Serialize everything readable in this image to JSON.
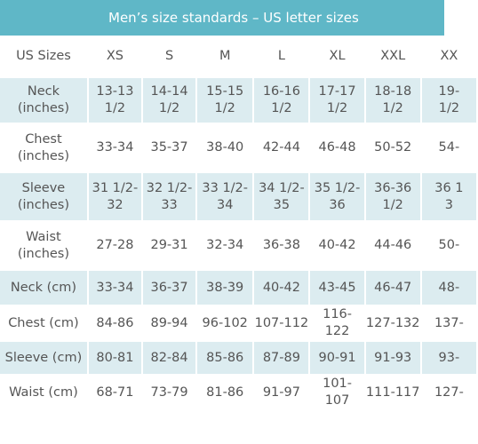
{
  "title": "Men’s size standards – US letter sizes",
  "table": {
    "header": [
      "US Sizes",
      "XS",
      "S",
      "M",
      "L",
      "XL",
      "XXL",
      "XX"
    ],
    "rows": [
      [
        "Neck\n(inches)",
        "13-13\n1/2",
        "14-14\n1/2",
        "15-15\n1/2",
        "16-16\n1/2",
        "17-17\n1/2",
        "18-18\n1/2",
        "19-\n1/2"
      ],
      [
        "Chest\n(inches)",
        "33-34",
        "35-37",
        "38-40",
        "42-44",
        "46-48",
        "50-52",
        "54-"
      ],
      [
        "Sleeve\n(inches)",
        "31 1/2-\n32",
        "32 1/2-\n33",
        "33 1/2-\n34",
        "34 1/2-\n35",
        "35 1/2-\n36",
        "36-36\n1/2",
        "36 1\n3"
      ],
      [
        "Waist\n(inches)",
        "27-28",
        "29-31",
        "32-34",
        "36-38",
        "40-42",
        "44-46",
        "50-"
      ],
      [
        "Neck (cm)",
        "33-34",
        "36-37",
        "38-39",
        "40-42",
        "43-45",
        "46-47",
        "48-"
      ],
      [
        "Chest (cm)",
        "84-86",
        "89-94",
        "96-102",
        "107-112",
        "116-122",
        "127-132",
        "137-"
      ],
      [
        "Sleeve (cm)",
        "80-81",
        "82-84",
        "85-86",
        "87-89",
        "90-91",
        "91-93",
        "93-"
      ],
      [
        "Waist (cm)",
        "68-71",
        "73-79",
        "81-86",
        "91-97",
        "101-107",
        "111-117",
        "127-"
      ]
    ]
  }
}
